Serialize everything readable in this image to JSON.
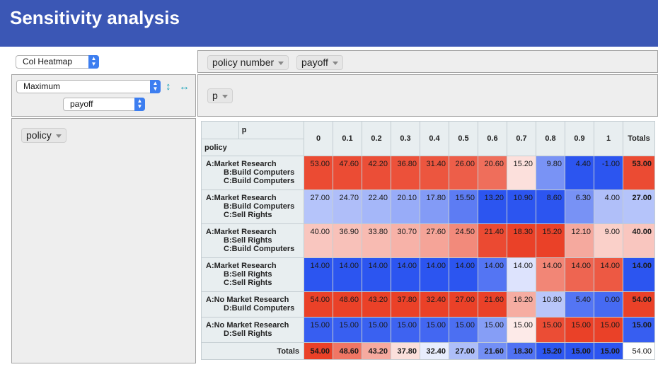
{
  "title": "Sensitivity analysis",
  "controls": {
    "renderer": "Col Heatmap",
    "aggregator": "Maximum",
    "aggregator_field": "payoff",
    "col_fields": [
      "policy number",
      "payoff"
    ],
    "row_drop_fields": [
      "p"
    ],
    "unused_fields": [
      "policy"
    ]
  },
  "table": {
    "col_attr": "p",
    "row_attr": "policy",
    "columns": [
      "0",
      "0.1",
      "0.2",
      "0.3",
      "0.4",
      "0.5",
      "0.6",
      "0.7",
      "0.8",
      "0.9",
      "1"
    ],
    "totals_label": "Totals",
    "rows": [
      {
        "lines": [
          "A:Market Research",
          "B:Build Computers",
          "C:Build Computers"
        ],
        "values": [
          "53.00",
          "47.60",
          "42.20",
          "36.80",
          "31.40",
          "26.00",
          "20.60",
          "15.20",
          "9.80",
          "4.40",
          "-1.00"
        ],
        "total": "53.00"
      },
      {
        "lines": [
          "A:Market Research",
          "B:Build Computers",
          "C:Sell Rights"
        ],
        "values": [
          "27.00",
          "24.70",
          "22.40",
          "20.10",
          "17.80",
          "15.50",
          "13.20",
          "10.90",
          "8.60",
          "6.30",
          "4.00"
        ],
        "total": "27.00"
      },
      {
        "lines": [
          "A:Market Research",
          "B:Sell Rights",
          "C:Build Computers"
        ],
        "values": [
          "40.00",
          "36.90",
          "33.80",
          "30.70",
          "27.60",
          "24.50",
          "21.40",
          "18.30",
          "15.20",
          "12.10",
          "9.00"
        ],
        "total": "40.00"
      },
      {
        "lines": [
          "A:Market Research",
          "B:Sell Rights",
          "C:Sell Rights"
        ],
        "values": [
          "14.00",
          "14.00",
          "14.00",
          "14.00",
          "14.00",
          "14.00",
          "14.00",
          "14.00",
          "14.00",
          "14.00",
          "14.00"
        ],
        "total": "14.00"
      },
      {
        "lines": [
          "A:No Market Research",
          "D:Build Computers"
        ],
        "values": [
          "54.00",
          "48.60",
          "43.20",
          "37.80",
          "32.40",
          "27.00",
          "21.60",
          "16.20",
          "10.80",
          "5.40",
          "0.00"
        ],
        "total": "54.00"
      },
      {
        "lines": [
          "A:No Market Research",
          "D:Sell Rights"
        ],
        "values": [
          "15.00",
          "15.00",
          "15.00",
          "15.00",
          "15.00",
          "15.00",
          "15.00",
          "15.00",
          "15.00",
          "15.00",
          "15.00"
        ],
        "total": "15.00"
      }
    ],
    "col_totals": [
      "54.00",
      "48.60",
      "43.20",
      "37.80",
      "32.40",
      "27.00",
      "21.60",
      "18.30",
      "15.20",
      "15.00",
      "15.00"
    ],
    "grand_total": "54.00"
  },
  "colors": {
    "header_bg": "#3b57b5",
    "heat_high": "#ea4128",
    "heat_mid": "#ffffff",
    "heat_low": "#2c55f0"
  }
}
